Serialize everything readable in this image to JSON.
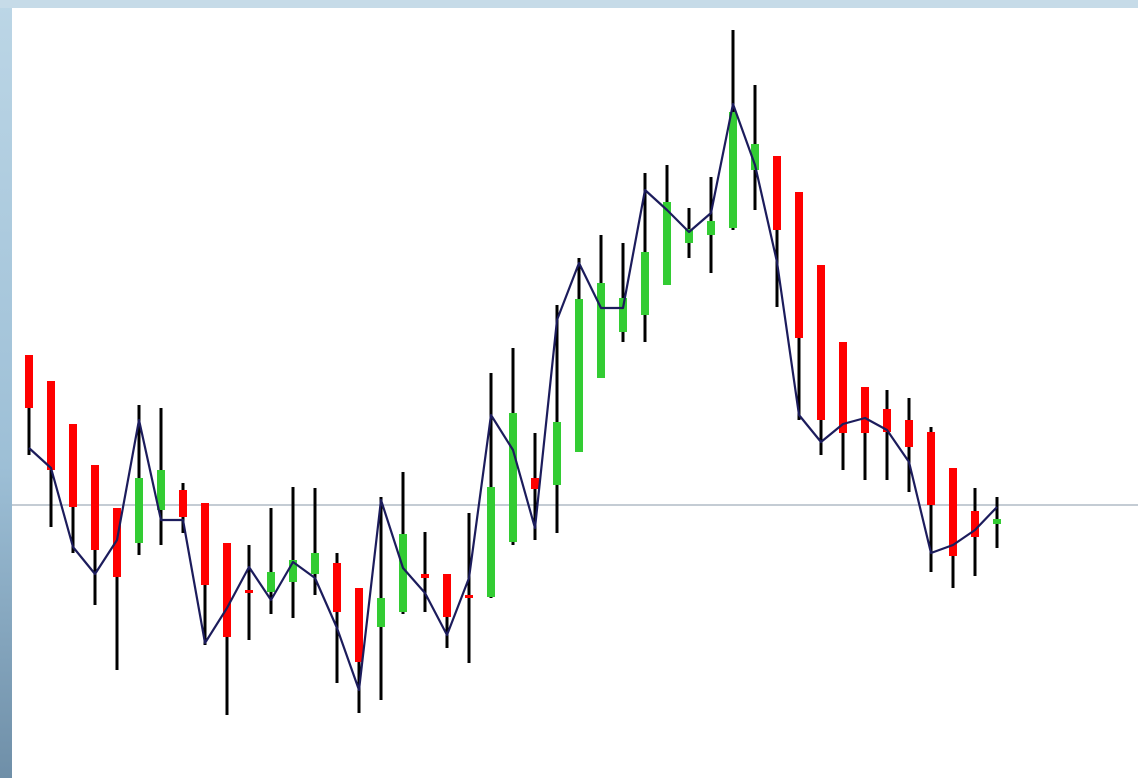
{
  "chart_data": {
    "type": "candlestick",
    "categories": [
      null,
      null,
      null,
      null,
      null,
      null,
      null,
      null,
      null,
      null,
      null,
      null,
      null,
      null,
      null,
      null,
      null,
      null,
      null,
      null,
      null,
      null,
      null,
      null,
      null,
      null,
      null,
      null,
      null,
      null,
      null,
      null,
      null,
      null,
      null,
      null,
      null,
      null,
      null,
      null,
      null,
      null,
      null,
      null,
      null
    ],
    "open": [
      42.3,
      39.7,
      35.4,
      31.3,
      27.0,
      23.5,
      26.8,
      28.8,
      27.5,
      23.5,
      18.8,
      18.6,
      19.6,
      20.4,
      21.5,
      19.0,
      15.1,
      16.6,
      20.4,
      20.4,
      18.3,
      18.1,
      23.6,
      30.0,
      29.3,
      32.6,
      40.0,
      44.6,
      46.3,
      49.3,
      53.5,
      54.3,
      55.0,
      60.8,
      62.2,
      58.6,
      51.3,
      43.6,
      39.1,
      36.9,
      35.8,
      34.6,
      31.0,
      26.7,
      25.4
    ],
    "high": [
      42.3,
      39.7,
      35.4,
      31.3,
      27.0,
      37.3,
      37.0,
      29.5,
      27.5,
      23.5,
      23.3,
      27.0,
      29.1,
      29.0,
      22.5,
      19.0,
      28.1,
      30.6,
      24.6,
      20.4,
      26.5,
      40.5,
      43.0,
      34.5,
      47.3,
      52.0,
      54.3,
      53.5,
      60.5,
      61.3,
      57.0,
      60.1,
      74.8,
      69.3,
      62.2,
      58.6,
      51.3,
      43.6,
      39.1,
      38.8,
      38.0,
      35.1,
      31.0,
      29.0,
      28.1
    ],
    "low": [
      32.3,
      25.1,
      22.5,
      17.3,
      10.8,
      22.3,
      23.3,
      24.5,
      13.3,
      6.3,
      13.8,
      16.4,
      16.0,
      18.3,
      9.5,
      6.5,
      7.8,
      16.4,
      16.6,
      13.0,
      11.5,
      18.0,
      23.3,
      23.8,
      24.5,
      32.6,
      40.0,
      43.6,
      43.6,
      49.3,
      52.0,
      50.5,
      54.8,
      56.8,
      47.1,
      35.8,
      32.3,
      30.8,
      29.8,
      29.8,
      28.6,
      20.6,
      19.0,
      20.2,
      23.0
    ],
    "close": [
      37.0,
      30.8,
      27.1,
      22.8,
      20.1,
      30.0,
      30.8,
      26.1,
      19.3,
      14.1,
      18.6,
      20.6,
      21.8,
      22.5,
      16.6,
      11.6,
      18.0,
      24.4,
      20.0,
      16.1,
      18.0,
      29.1,
      36.5,
      28.9,
      35.6,
      47.9,
      49.5,
      48.0,
      52.6,
      57.6,
      54.9,
      55.7,
      66.6,
      63.4,
      54.8,
      44.0,
      35.8,
      34.5,
      34.5,
      34.6,
      33.1,
      27.3,
      22.2,
      24.1,
      25.9
    ],
    "line": [
      33.0,
      31.0,
      23.1,
      20.4,
      23.8,
      35.8,
      25.8,
      25.8,
      13.5,
      17.0,
      21.1,
      17.8,
      21.6,
      20.0,
      15.0,
      8.8,
      27.8,
      21.0,
      18.5,
      14.3,
      20.0,
      36.3,
      32.8,
      25.0,
      45.8,
      51.5,
      47.0,
      47.0,
      58.8,
      56.8,
      54.6,
      56.5,
      67.4,
      61.3,
      51.6,
      36.3,
      33.6,
      35.4,
      36.0,
      34.8,
      31.6,
      22.5,
      23.3,
      24.8,
      27.1
    ],
    "up_color": "#33cc33",
    "down_color": "#ff0000",
    "wick_color": "#000000",
    "line_color": "#1c1c5c",
    "reference_line": 27.3,
    "reference_color": "#8899aa",
    "ylim": [
      0,
      77.8
    ]
  }
}
